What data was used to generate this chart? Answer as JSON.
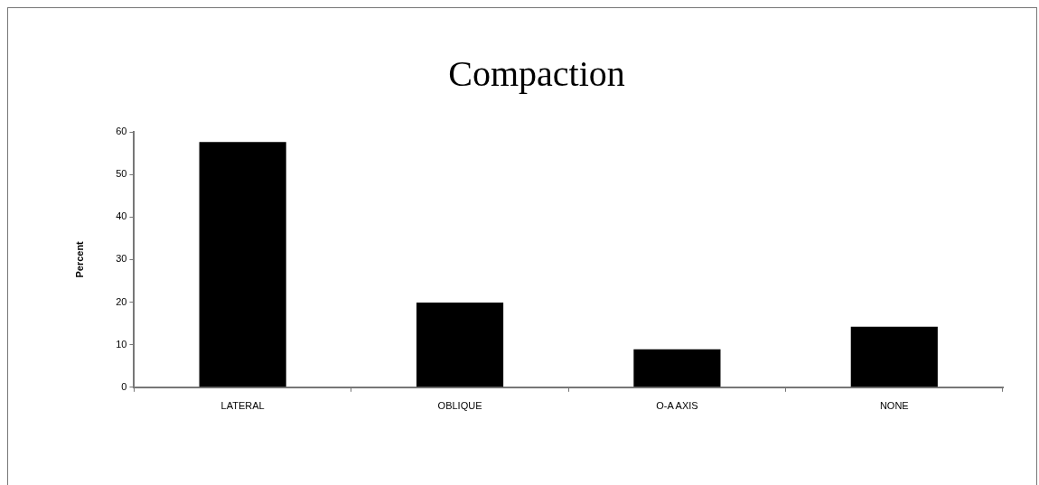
{
  "chart_data": {
    "type": "bar",
    "title": "Compaction",
    "ylabel": "Percent",
    "categories": [
      "LATERAL",
      "OBLIQUE",
      "O-A AXIS",
      "NONE"
    ],
    "values": [
      57.6,
      19.9,
      8.9,
      14.2
    ],
    "color": "#000000",
    "ylim": [
      0,
      60
    ],
    "yticks": [
      0,
      10,
      20,
      30,
      40,
      50,
      60
    ],
    "grid": false,
    "legend": false
  }
}
